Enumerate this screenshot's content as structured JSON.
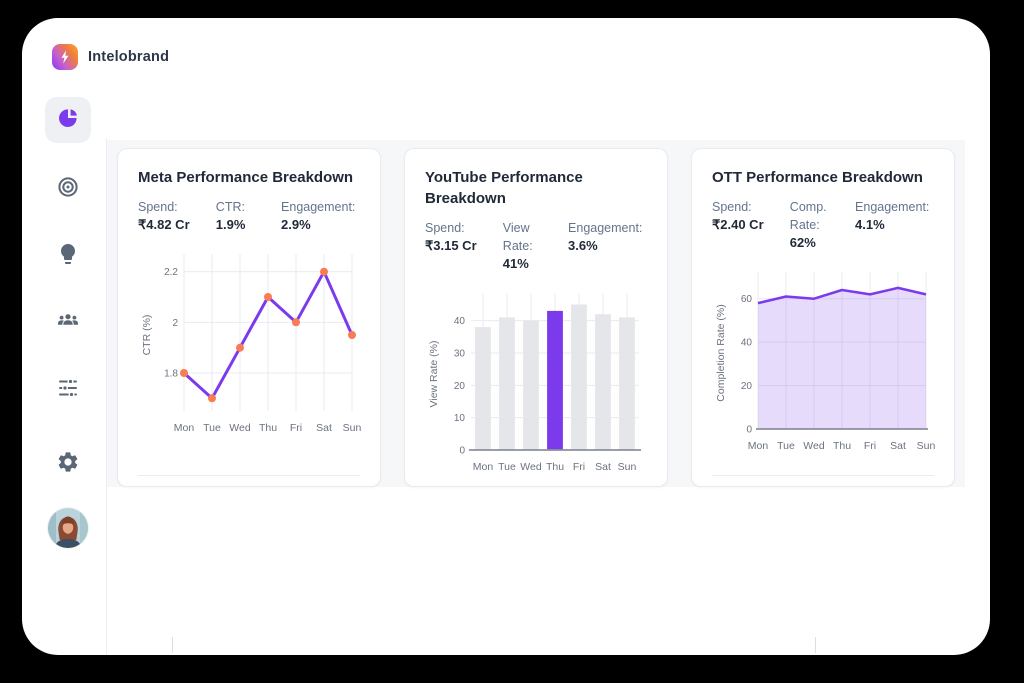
{
  "brand": {
    "name": "Intelobrand",
    "logo_icon": "lightning-bolt-icon",
    "gradient_from": "#8b3df2",
    "gradient_to": "#f9a93c"
  },
  "sidebar": {
    "items": [
      {
        "icon": "pie-chart-icon",
        "active": true
      },
      {
        "icon": "target-icon",
        "active": false
      },
      {
        "icon": "lightbulb-icon",
        "active": false
      },
      {
        "icon": "users-icon",
        "active": false
      },
      {
        "icon": "sliders-icon",
        "active": false
      },
      {
        "icon": "gear-icon",
        "active": false
      }
    ],
    "avatar": "user-avatar"
  },
  "colors": {
    "accent_purple": "#7c3aed",
    "marker_orange": "#f97c52",
    "bar_gray": "#e4e6ea",
    "grid": "#e9ebef",
    "text_dark": "#1f2937",
    "text_gray": "#64748b"
  },
  "cards": [
    {
      "title": "Meta Performance Breakdown",
      "stats": [
        {
          "label_line1": "Spend:",
          "label_line2": "",
          "value": "₹4.82 Cr"
        },
        {
          "label_line1": "CTR:",
          "label_line2": "",
          "value": "1.9%"
        },
        {
          "label_line1": "Engagement:",
          "label_line2": "",
          "value": "2.9%"
        }
      ]
    },
    {
      "title": "YouTube Performance Breakdown",
      "stats": [
        {
          "label_line1": "Spend:",
          "label_line2": "",
          "value": "₹3.15 Cr"
        },
        {
          "label_line1": "View",
          "label_line2": "Rate:",
          "value": "41%"
        },
        {
          "label_line1": "Engagement:",
          "label_line2": "",
          "value": "3.6%"
        }
      ]
    },
    {
      "title": "OTT Performance Breakdown",
      "stats": [
        {
          "label_line1": "Spend:",
          "label_line2": "",
          "value": "₹2.40 Cr"
        },
        {
          "label_line1": "Comp.",
          "label_line2": "Rate:",
          "value": "62%"
        },
        {
          "label_line1": "Engagement:",
          "label_line2": "",
          "value": "4.1%"
        }
      ]
    }
  ],
  "chart_data": [
    {
      "type": "line",
      "title": "Meta Performance Breakdown",
      "categories": [
        "Mon",
        "Tue",
        "Wed",
        "Thu",
        "Fri",
        "Sat",
        "Sun"
      ],
      "values": [
        1.8,
        1.7,
        1.9,
        2.1,
        2.0,
        2.2,
        1.95
      ],
      "xlabel": "",
      "ylabel": "CTR (%)",
      "ylim": [
        1.65,
        2.25
      ],
      "yticks": [
        1.8,
        2,
        2.2
      ],
      "ytick_labels": [
        "1.8",
        "2",
        "2.2"
      ],
      "grid": true,
      "line_color": "#7c3aed",
      "marker_color": "#f97c52",
      "baseline": false
    },
    {
      "type": "bar",
      "title": "YouTube Performance Breakdown",
      "categories": [
        "Mon",
        "Tue",
        "Wed",
        "Thu",
        "Fri",
        "Sat",
        "Sun"
      ],
      "values": [
        38,
        41,
        40,
        43,
        45,
        42,
        41
      ],
      "xlabel": "",
      "ylabel": "View Rate (%)",
      "ylim": [
        0,
        47
      ],
      "yticks": [
        0,
        10,
        20,
        30,
        40
      ],
      "ytick_labels": [
        "0",
        "10",
        "20",
        "30",
        "40"
      ],
      "grid": true,
      "bar_color": "#e4e6ea",
      "highlight_index": 3,
      "highlight_color": "#7c3aed",
      "baseline": true
    },
    {
      "type": "area",
      "title": "OTT Performance Breakdown",
      "categories": [
        "Mon",
        "Tue",
        "Wed",
        "Thu",
        "Fri",
        "Sat",
        "Sun"
      ],
      "values": [
        58,
        61,
        60,
        64,
        62,
        65,
        62
      ],
      "xlabel": "",
      "ylabel": "Completion Rate (%)",
      "ylim": [
        0,
        70
      ],
      "yticks": [
        0,
        20,
        40,
        60
      ],
      "ytick_labels": [
        "0",
        "20",
        "40",
        "60"
      ],
      "grid": true,
      "line_color": "#7c3aed",
      "fill_color": "#7c3aed",
      "fill_opacity": 0.18,
      "baseline": true
    }
  ]
}
